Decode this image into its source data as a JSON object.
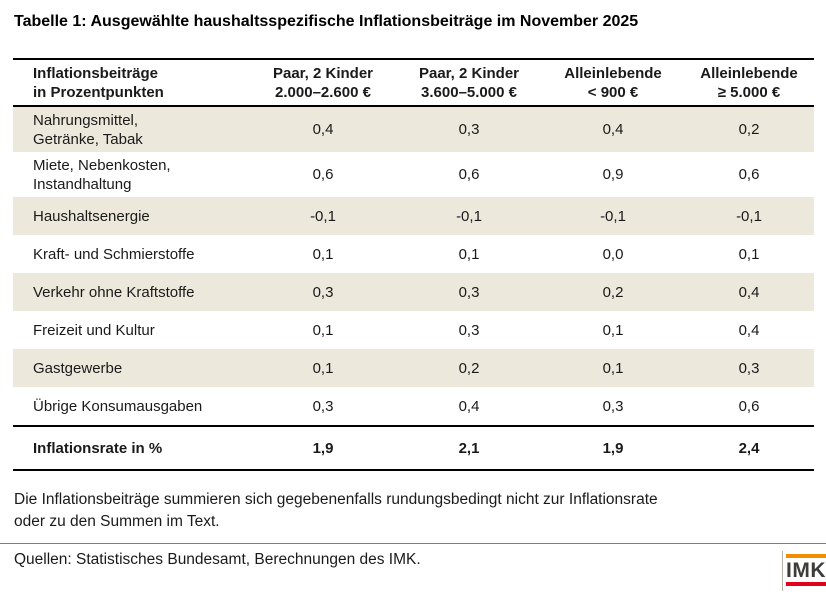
{
  "title": "Tabelle 1: Ausgewählte haushaltsspezifische Inflationsbeiträge im November 2025",
  "table": {
    "columns": [
      {
        "lines": [
          "Inflationsbeiträge",
          "in Prozentpunkten"
        ]
      },
      {
        "lines": [
          "Paar, 2 Kinder",
          "2.000–2.600 €"
        ]
      },
      {
        "lines": [
          "Paar, 2 Kinder",
          "3.600–5.000 €"
        ]
      },
      {
        "lines": [
          "Alleinlebende",
          "< 900 €"
        ]
      },
      {
        "lines": [
          "Alleinlebende",
          "≥ 5.000 €"
        ]
      }
    ],
    "rows": [
      {
        "label_lines": [
          "Nahrungsmittel,",
          "Getränke, Tabak"
        ],
        "values": [
          "0,4",
          "0,3",
          "0,4",
          "0,2"
        ],
        "shaded": true
      },
      {
        "label_lines": [
          "Miete, Nebenkosten,",
          "Instandhaltung"
        ],
        "values": [
          "0,6",
          "0,6",
          "0,9",
          "0,6"
        ],
        "shaded": false
      },
      {
        "label_lines": [
          "Haushaltsenergie"
        ],
        "values": [
          "-0,1",
          "-0,1",
          "-0,1",
          "-0,1"
        ],
        "shaded": true
      },
      {
        "label_lines": [
          "Kraft- und Schmierstoffe"
        ],
        "values": [
          "0,1",
          "0,1",
          "0,0",
          "0,1"
        ],
        "shaded": false
      },
      {
        "label_lines": [
          "Verkehr ohne Kraftstoffe"
        ],
        "values": [
          "0,3",
          "0,3",
          "0,2",
          "0,4"
        ],
        "shaded": true
      },
      {
        "label_lines": [
          "Freizeit und Kultur"
        ],
        "values": [
          "0,1",
          "0,3",
          "0,1",
          "0,4"
        ],
        "shaded": false
      },
      {
        "label_lines": [
          "Gastgewerbe"
        ],
        "values": [
          "0,1",
          "0,2",
          "0,1",
          "0,3"
        ],
        "shaded": true
      },
      {
        "label_lines": [
          "Übrige Konsumausgaben"
        ],
        "values": [
          "0,3",
          "0,4",
          "0,3",
          "0,6"
        ],
        "shaded": false
      }
    ],
    "total_row": {
      "label": "Inflationsrate in %",
      "values": [
        "1,9",
        "2,1",
        "1,9",
        "2,4"
      ]
    }
  },
  "footnote": {
    "line1": "Die Inflationsbeiträge summieren sich gegebenenfalls rundungsbedingt nicht zur Inflationsrate",
    "line2": "oder zu den Summen im Text."
  },
  "sources": "Quellen: Statistisches Bundesamt, Berechnungen des IMK.",
  "logo": {
    "text": "IMK",
    "bar_top_color": "#F28C00",
    "bar_bottom_color": "#E2001A"
  },
  "colors": {
    "row_shaded": "#ECE9DC",
    "text": "#1a1a1a",
    "rule_black": "#000000",
    "rule_gray": "#7f7d78"
  },
  "chart_data": {
    "type": "table",
    "title": "Tabelle 1: Ausgewählte haushaltsspezifische Inflationsbeiträge im November 2025",
    "row_header": "Inflationsbeiträge in Prozentpunkten",
    "columns": [
      "Paar, 2 Kinder 2.000–2.600 €",
      "Paar, 2 Kinder 3.600–5.000 €",
      "Alleinlebende < 900 €",
      "Alleinlebende ≥ 5.000 €"
    ],
    "rows": [
      {
        "label": "Nahrungsmittel, Getränke, Tabak",
        "values": [
          0.4,
          0.3,
          0.4,
          0.2
        ]
      },
      {
        "label": "Miete, Nebenkosten, Instandhaltung",
        "values": [
          0.6,
          0.6,
          0.9,
          0.6
        ]
      },
      {
        "label": "Haushaltsenergie",
        "values": [
          -0.1,
          -0.1,
          -0.1,
          -0.1
        ]
      },
      {
        "label": "Kraft- und Schmierstoffe",
        "values": [
          0.1,
          0.1,
          0.0,
          0.1
        ]
      },
      {
        "label": "Verkehr ohne Kraftstoffe",
        "values": [
          0.3,
          0.3,
          0.2,
          0.4
        ]
      },
      {
        "label": "Freizeit und Kultur",
        "values": [
          0.1,
          0.3,
          0.1,
          0.4
        ]
      },
      {
        "label": "Gastgewerbe",
        "values": [
          0.1,
          0.2,
          0.1,
          0.3
        ]
      },
      {
        "label": "Übrige Konsumausgaben",
        "values": [
          0.3,
          0.4,
          0.3,
          0.6
        ]
      },
      {
        "label": "Inflationsrate in %",
        "values": [
          1.9,
          2.1,
          1.9,
          2.4
        ]
      }
    ],
    "notes": "Die Inflationsbeiträge summieren sich gegebenenfalls rundungsbedingt nicht zur Inflationsrate oder zu den Summen im Text.",
    "source": "Quellen: Statistisches Bundesamt, Berechnungen des IMK."
  }
}
